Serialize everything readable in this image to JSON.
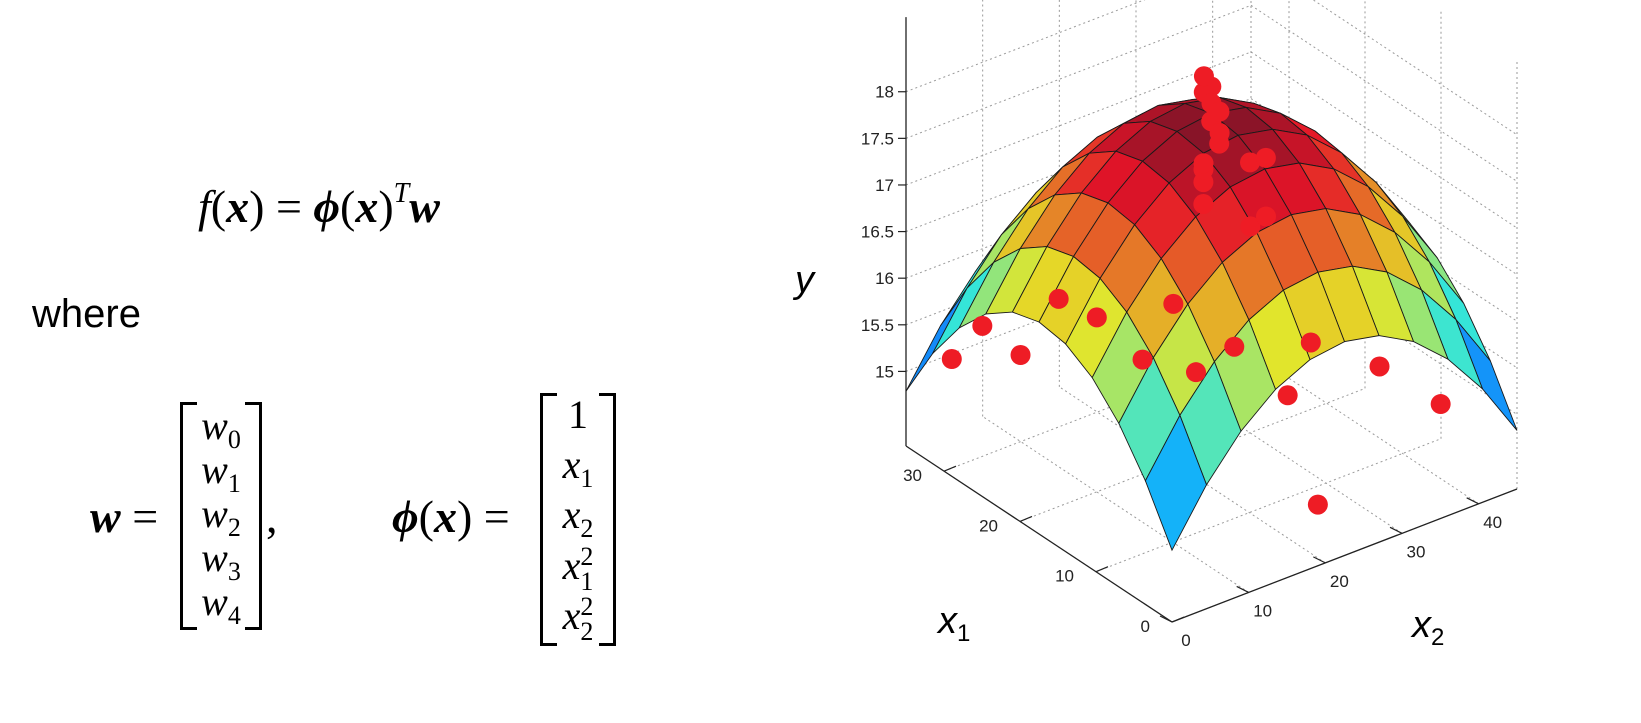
{
  "equation": {
    "f": "f",
    "x": "x",
    "phi": "ϕ",
    "w": "w",
    "T": "T",
    "equals": "=",
    "lparen": "(",
    "rparen": ")"
  },
  "where_text": "where",
  "w_vector": {
    "lhs": "w",
    "equals": "=",
    "comma": ",",
    "entries": [
      {
        "base": "w",
        "sub": "0"
      },
      {
        "base": "w",
        "sub": "1"
      },
      {
        "base": "w",
        "sub": "2"
      },
      {
        "base": "w",
        "sub": "3"
      },
      {
        "base": "w",
        "sub": "4"
      }
    ]
  },
  "phi_vector": {
    "lhs_phi": "ϕ",
    "lhs_x": "x",
    "equals": "=",
    "entries": [
      {
        "base": "1",
        "sub": "",
        "sup": ""
      },
      {
        "base": "x",
        "sub": "1",
        "sup": ""
      },
      {
        "base": "x",
        "sub": "2",
        "sup": ""
      },
      {
        "base": "x",
        "sub": "1",
        "sup": "2"
      },
      {
        "base": "x",
        "sub": "2",
        "sup": "2"
      }
    ]
  },
  "chart_data": {
    "type": "surface3d",
    "zlabel": "y",
    "xlabel": {
      "base": "x",
      "sub": "1"
    },
    "ylabel": {
      "base": "x",
      "sub": "2"
    },
    "x1_ticks": [
      "0",
      "10",
      "20",
      "30"
    ],
    "x2_ticks": [
      "0",
      "10",
      "20",
      "30",
      "40"
    ],
    "z_ticks": [
      "15",
      "15.5",
      "16",
      "16.5",
      "17",
      "17.5",
      "18"
    ],
    "x1_range": [
      0,
      35
    ],
    "x2_range": [
      0,
      45
    ],
    "z_range": [
      15,
      18
    ],
    "grid": true,
    "colormap": "jet",
    "point_color": "#ee1c25",
    "surface": {
      "form": "quadratic",
      "peak": 18,
      "peak_at": [
        17,
        22
      ],
      "corner_low": 14.3,
      "edge_low": 15.1,
      "samples": 10
    },
    "points": [
      [
        15,
        20,
        18.5
      ],
      [
        13,
        18,
        18.3
      ],
      [
        17,
        21,
        18.3
      ],
      [
        19,
        23,
        18.3
      ],
      [
        17,
        22,
        18.15
      ],
      [
        11,
        15,
        17.85
      ],
      [
        12,
        16,
        17.9
      ],
      [
        13,
        17,
        17.88
      ],
      [
        10,
        14,
        17.7
      ],
      [
        18,
        24,
        17.6
      ],
      [
        22,
        28,
        17.6
      ],
      [
        24,
        30,
        17.2
      ],
      [
        20,
        30,
        17.1
      ],
      [
        28,
        40,
        16.4
      ],
      [
        25,
        10,
        16.0
      ],
      [
        22,
        12,
        15.9
      ],
      [
        30,
        5,
        15.6
      ],
      [
        32,
        3,
        15.2
      ],
      [
        28,
        8,
        15.3
      ],
      [
        18,
        14,
        15.6
      ],
      [
        10,
        25,
        15.3
      ],
      [
        15,
        18,
        15.5
      ],
      [
        12,
        30,
        15.6
      ],
      [
        8,
        35,
        15.4
      ],
      [
        14,
        22,
        15.7
      ],
      [
        5,
        40,
        15.0
      ],
      [
        20,
        20,
        15.9
      ],
      [
        3,
        22,
        14.6
      ],
      [
        26,
        36,
        15.9
      ],
      [
        30,
        42,
        15.6
      ]
    ]
  }
}
